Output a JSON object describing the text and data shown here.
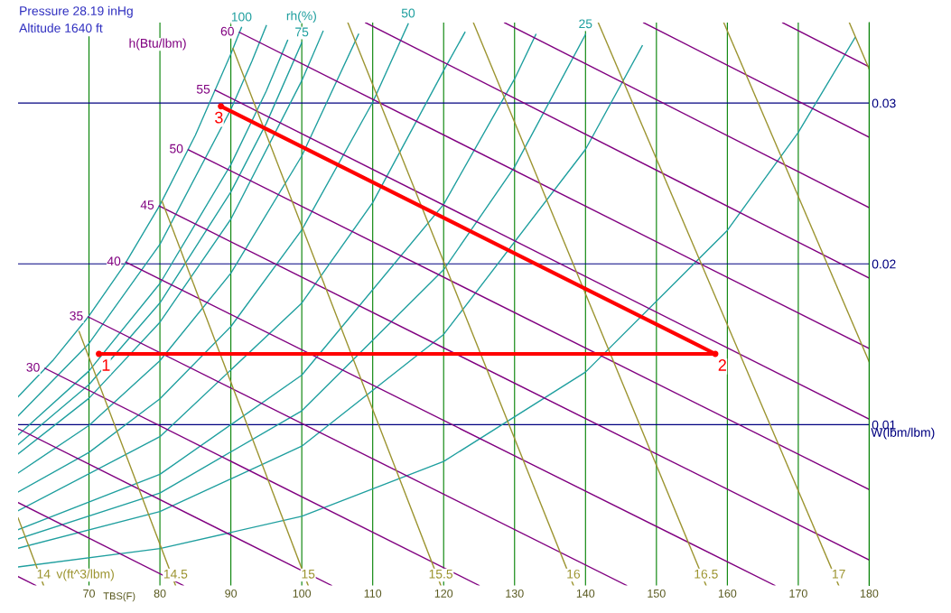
{
  "chart_data": {
    "type": "line",
    "title": "Pressure 28.19 inHg",
    "subtitle": "Altitude 1640 ft",
    "xlabel": "TBS(F)",
    "ylabel": "W(lbm/lbm)",
    "xlim": [
      60,
      180
    ],
    "xticks": [
      70,
      80,
      90,
      100,
      110,
      120,
      130,
      140,
      150,
      160,
      170,
      180
    ],
    "ylim": [
      0,
      0.035
    ],
    "yticks": [
      0.01,
      0.02,
      0.03
    ],
    "grid": true,
    "legend": false,
    "marker": "none",
    "line_style": "solid",
    "series": [
      {
        "name": "100",
        "color": "#1f9f9f",
        "x": [
          91.5,
          91,
          90,
          85,
          80,
          75,
          70,
          65,
          60
        ],
        "values": [
          0.0347,
          0.03416,
          0.03306,
          0.028,
          0.02366,
          0.01994,
          0.01676,
          0.01404,
          0.01173
        ]
      },
      {
        "color": "#1f9f9f",
        "x": [
          95,
          93,
          90,
          80,
          70,
          60
        ],
        "values": [
          0.03481,
          0.03263,
          0.0296,
          0.02121,
          0.01505,
          0.01054
        ]
      },
      {
        "color": "#1f9f9f",
        "x": [
          98,
          95,
          90,
          80,
          70,
          60
        ],
        "values": [
          0.0339,
          0.03075,
          0.02617,
          0.01878,
          0.01334,
          0.00935
        ]
      },
      {
        "name": "75",
        "color": "#1f9f9f",
        "x": [
          100,
          95,
          90,
          80,
          70,
          60
        ],
        "values": [
          0.03376,
          0.02874,
          0.02447,
          0.01757,
          0.01249,
          0.00876
        ]
      },
      {
        "color": "#1f9f9f",
        "x": [
          103,
          100,
          90,
          80,
          70,
          60
        ],
        "values": [
          0.03447,
          0.03139,
          0.02278,
          0.01637,
          0.01164,
          0.00817
        ]
      },
      {
        "color": "#1f9f9f",
        "x": [
          108,
          100,
          90,
          80,
          70,
          60
        ],
        "values": [
          0.03428,
          0.02671,
          0.01942,
          0.01398,
          0.00995,
          0.00699
        ]
      },
      {
        "name": "50",
        "color": "#1f9f9f",
        "x": [
          115,
          110,
          100,
          90,
          80,
          70,
          60
        ],
        "values": [
          0.03493,
          0.03005,
          0.02211,
          0.0161,
          0.01161,
          0.00827,
          0.00581
        ]
      },
      {
        "color": "#1f9f9f",
        "x": [
          123,
          120,
          110,
          100,
          80,
          60
        ],
        "values": [
          0.0344,
          0.03202,
          0.02381,
          0.01756,
          0.00925,
          0.00464
        ]
      },
      {
        "color": "#1f9f9f",
        "x": [
          133,
          130,
          120,
          100,
          80,
          60
        ],
        "values": [
          0.03427,
          0.0315,
          0.0237,
          0.01308,
          0.00691,
          0.00347
        ]
      },
      {
        "name": "25",
        "color": "#1f9f9f",
        "x": [
          140,
          130,
          120,
          100,
          80,
          60
        ],
        "values": [
          0.03427,
          0.02603,
          0.01963,
          0.01086,
          0.00575,
          0.00289
        ]
      },
      {
        "color": "#1f9f9f",
        "x": [
          148,
          140,
          120,
          100,
          80,
          60
        ],
        "values": [
          0.03357,
          0.02712,
          0.01561,
          0.00866,
          0.00459,
          0.00231
        ]
      },
      {
        "color": "#1f9f9f",
        "x": [
          178,
          170,
          160,
          140,
          120,
          100,
          80,
          60
        ],
        "values": [
          0.03407,
          0.02818,
          0.02208,
          0.01327,
          0.00771,
          0.0043,
          0.00229,
          0.00115
        ]
      },
      {
        "color": "#800080",
        "x": [
          60,
          62.5
        ],
        "values": [
          0.00055,
          0
        ]
      },
      {
        "color": "#800080",
        "x": [
          60,
          83.3
        ],
        "values": [
          0.00515,
          0
        ]
      },
      {
        "color": "#800080",
        "x": [
          60,
          104.2
        ],
        "values": [
          0.00975,
          0
        ]
      },
      {
        "name": "30",
        "color": "#800080",
        "x": [
          63.8,
          125
        ],
        "values": [
          0.0135,
          0
        ]
      },
      {
        "name": "35",
        "color": "#800080",
        "x": [
          69.9,
          145.8
        ],
        "values": [
          0.0167,
          0
        ]
      },
      {
        "name": "40",
        "color": "#800080",
        "x": [
          75.2,
          166.7
        ],
        "values": [
          0.0201,
          0
        ]
      },
      {
        "name": "45",
        "color": "#800080",
        "x": [
          79.9,
          180
        ],
        "values": [
          0.0236,
          0.00158
        ]
      },
      {
        "name": "50",
        "color": "#800080",
        "x": [
          84,
          180
        ],
        "values": [
          0.0271,
          0.00596
        ]
      },
      {
        "name": "55",
        "color": "#800080",
        "x": [
          87.8,
          180
        ],
        "values": [
          0.0308,
          0.01034
        ]
      },
      {
        "name": "60",
        "color": "#800080",
        "x": [
          91.2,
          180
        ],
        "values": [
          0.0344,
          0.01473
        ]
      },
      {
        "color": "#800080",
        "x": [
          109,
          180
        ],
        "values": [
          0.035,
          0.01911
        ]
      },
      {
        "color": "#800080",
        "x": [
          128.6,
          180
        ],
        "values": [
          0.035,
          0.02349
        ]
      },
      {
        "color": "#800080",
        "x": [
          148.2,
          180
        ],
        "values": [
          0.035,
          0.02787
        ]
      },
      {
        "color": "#800080",
        "x": [
          167.8,
          180
        ],
        "values": [
          0.035,
          0.03225
        ]
      },
      {
        "name": "14",
        "color": "#9c9430",
        "x": [
          63.6,
          60
        ],
        "values": [
          0,
          0.0042
        ]
      },
      {
        "name": "14.5",
        "color": "#9c9430",
        "x": [
          82.2,
          68.6
        ],
        "values": [
          0,
          0.0158
        ]
      },
      {
        "name": "15",
        "color": "#9c9430",
        "x": [
          100.9,
          80.3
        ],
        "values": [
          0,
          0.0239
        ]
      },
      {
        "name": "15.5",
        "color": "#9c9430",
        "x": [
          119.6,
          90.3
        ],
        "values": [
          0,
          0.0334
        ]
      },
      {
        "name": "16",
        "color": "#9c9430",
        "x": [
          138.3,
          106.5
        ],
        "values": [
          0,
          0.035
        ]
      },
      {
        "name": "16.5",
        "color": "#9c9430",
        "x": [
          157,
          124.2
        ],
        "values": [
          0,
          0.035
        ]
      },
      {
        "name": "17",
        "color": "#9c9430",
        "x": [
          175.7,
          141.8
        ],
        "values": [
          0,
          0.035
        ]
      },
      {
        "color": "#9c9430",
        "x": [
          180,
          159.5
        ],
        "values": [
          0.0139,
          0.035
        ]
      },
      {
        "color": "#9c9430",
        "x": [
          180,
          177.2
        ],
        "values": [
          0.0321,
          0.035
        ]
      },
      {
        "color": "#ff0000",
        "marker": "circle",
        "x": [
          71.4,
          158.3,
          88.6
        ],
        "values": [
          0.0144,
          0.0144,
          0.0298
        ]
      }
    ],
    "annotations": [
      {
        "text": "1",
        "x": 71.4,
        "y": 0.0144
      },
      {
        "text": "2",
        "x": 158.3,
        "y": 0.0144
      },
      {
        "text": "3",
        "x": 88.6,
        "y": 0.0298
      },
      "rh(%)",
      "h(Btu/lbm)",
      "v(ft^3/lbm)"
    ]
  }
}
